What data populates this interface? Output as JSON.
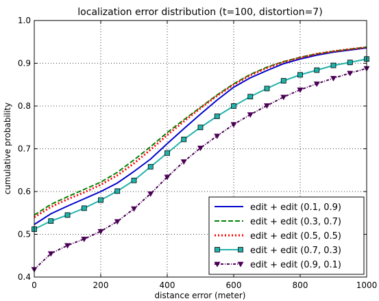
{
  "chart_data": {
    "type": "line",
    "title": "localization error distribution (t=100, distortion=7)",
    "xlabel": "distance error (meter)",
    "ylabel": "cumulative probability",
    "xlim": [
      0,
      1000
    ],
    "ylim": [
      0.4,
      1.0
    ],
    "xticks": [
      "0",
      "200",
      "400",
      "600",
      "800",
      "1000"
    ],
    "yticks": [
      "0.4",
      "0.5",
      "0.6",
      "0.7",
      "0.8",
      "0.9",
      "1.0"
    ],
    "grid": true,
    "legend_position": "lower-right",
    "x": [
      0,
      50,
      100,
      150,
      200,
      250,
      300,
      350,
      400,
      450,
      500,
      550,
      600,
      650,
      700,
      750,
      800,
      850,
      900,
      950,
      1000
    ],
    "series": [
      {
        "name": "edit + edit (0.1, 0.9)",
        "color": "#0000cc",
        "style": "solid",
        "marker": "none",
        "values": [
          0.523,
          0.548,
          0.566,
          0.583,
          0.6,
          0.62,
          0.647,
          0.676,
          0.712,
          0.747,
          0.781,
          0.814,
          0.844,
          0.866,
          0.883,
          0.899,
          0.91,
          0.919,
          0.926,
          0.931,
          0.936
        ]
      },
      {
        "name": "edit + edit (0.3, 0.7)",
        "color": "#008000",
        "style": "dashed",
        "marker": "none",
        "values": [
          0.545,
          0.57,
          0.588,
          0.605,
          0.622,
          0.645,
          0.674,
          0.705,
          0.738,
          0.768,
          0.797,
          0.826,
          0.852,
          0.874,
          0.891,
          0.904,
          0.914,
          0.922,
          0.928,
          0.933,
          0.938
        ]
      },
      {
        "name": "edit + edit (0.5, 0.5)",
        "color": "#ff0000",
        "style": "dotted",
        "marker": "none",
        "values": [
          0.54,
          0.564,
          0.582,
          0.598,
          0.616,
          0.638,
          0.666,
          0.698,
          0.732,
          0.764,
          0.795,
          0.824,
          0.85,
          0.872,
          0.889,
          0.903,
          0.913,
          0.922,
          0.928,
          0.933,
          0.937
        ]
      },
      {
        "name": "edit + edit (0.7, 0.3)",
        "color": "#20b2aa",
        "style": "solid",
        "marker": "square",
        "values": [
          0.512,
          0.531,
          0.545,
          0.561,
          0.58,
          0.601,
          0.626,
          0.658,
          0.69,
          0.722,
          0.75,
          0.776,
          0.8,
          0.822,
          0.841,
          0.859,
          0.873,
          0.884,
          0.895,
          0.902,
          0.91
        ]
      },
      {
        "name": "edit + edit (0.9, 0.1)",
        "color": "#4b0055",
        "style": "dash-dot",
        "marker": "triangle-down",
        "values": [
          0.418,
          0.455,
          0.474,
          0.489,
          0.507,
          0.53,
          0.56,
          0.595,
          0.634,
          0.67,
          0.702,
          0.73,
          0.757,
          0.78,
          0.801,
          0.821,
          0.838,
          0.852,
          0.865,
          0.877,
          0.888
        ]
      }
    ]
  }
}
